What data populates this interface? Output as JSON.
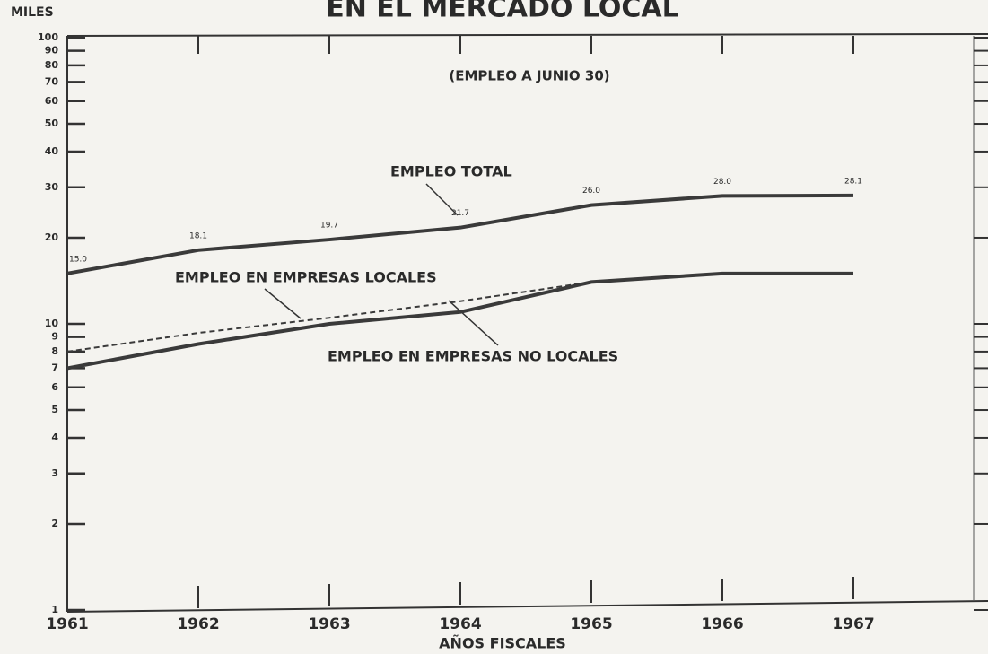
{
  "chart_data": {
    "type": "line",
    "title": "EN EL MERCADO LOCAL",
    "subtitle": "(EMPLEO A JUNIO 30)",
    "y_label": "MILES",
    "x_label": "AÑOS FISCALES",
    "categories": [
      "1961",
      "1962",
      "1963",
      "1964",
      "1965",
      "1966",
      "1967"
    ],
    "series": [
      {
        "name": "EMPLEO TOTAL",
        "color": "#3a3a3a",
        "dashed": false,
        "values": [
          15.0,
          18.1,
          19.7,
          21.7,
          26.0,
          28.0,
          28.1
        ],
        "value_labels": [
          "15.0",
          "18.1",
          "19.7",
          "21.7",
          "26.0",
          "28.0",
          "28.1"
        ]
      },
      {
        "name": "EMPLEO EN EMPRESAS LOCALES",
        "color": "#3a3a3a",
        "dashed": true,
        "values": [
          8.0,
          9.3,
          10.5,
          12,
          14,
          15,
          15
        ]
      },
      {
        "name": "EMPLEO EN EMPRESAS NO LOCALES",
        "color": "#3a3a3a",
        "dashed": false,
        "values": [
          7,
          8.5,
          10,
          11,
          14,
          15,
          15
        ]
      }
    ],
    "ylim": [
      1,
      100
    ],
    "yticks": [
      1,
      2,
      3,
      4,
      5,
      6,
      7,
      8,
      9,
      10,
      20,
      30,
      40,
      50,
      60,
      70,
      80,
      90,
      100
    ],
    "log_scale": true
  }
}
